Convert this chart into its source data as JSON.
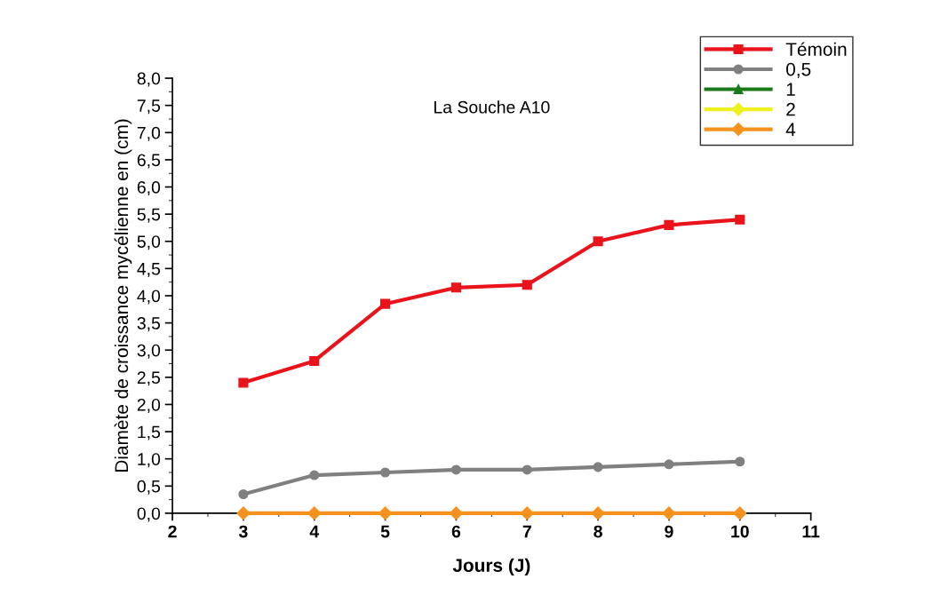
{
  "chart_data": {
    "type": "line",
    "title": "La Souche A10",
    "xlabel": "Jours (J)",
    "ylabel": "Diamète de croissance mycélienne en (cm)",
    "x": [
      3,
      4,
      5,
      6,
      7,
      8,
      9,
      10
    ],
    "series": [
      {
        "name": "Témoin",
        "color": "#e8131b",
        "marker": "square",
        "values": [
          2.4,
          2.8,
          3.85,
          4.15,
          4.2,
          5.0,
          5.3,
          5.4
        ]
      },
      {
        "name": "0,5",
        "color": "#808080",
        "marker": "circle",
        "values": [
          0.35,
          0.7,
          0.75,
          0.8,
          0.8,
          0.85,
          0.9,
          0.95
        ]
      },
      {
        "name": "1",
        "color": "#1a7a1a",
        "marker": "triangle",
        "values": [
          null,
          null,
          null,
          null,
          null,
          null,
          null,
          null
        ]
      },
      {
        "name": "2",
        "color": "#f0f020",
        "marker": "diamond",
        "values": [
          null,
          null,
          null,
          null,
          null,
          null,
          null,
          null
        ]
      },
      {
        "name": "4",
        "color": "#f5921e",
        "marker": "diamond",
        "values": [
          0,
          0,
          0,
          0,
          0,
          0,
          0,
          0
        ]
      }
    ],
    "xlim": [
      2,
      11
    ],
    "xticks": [
      2,
      3,
      4,
      5,
      6,
      7,
      8,
      9,
      10,
      11
    ],
    "ylim": [
      0,
      8
    ],
    "yticks": [
      {
        "value": 0,
        "label": "0,0"
      },
      {
        "value": 0.5,
        "label": "0,5"
      },
      {
        "value": 1,
        "label": "1,0"
      },
      {
        "value": 1.5,
        "label": "1,5"
      },
      {
        "value": 2,
        "label": "2,0"
      },
      {
        "value": 2.5,
        "label": "2,5"
      },
      {
        "value": 3,
        "label": "3,0"
      },
      {
        "value": 3.5,
        "label": "3,5"
      },
      {
        "value": 4,
        "label": "4,0"
      },
      {
        "value": 4.5,
        "label": "4,5"
      },
      {
        "value": 5,
        "label": "5,0"
      },
      {
        "value": 5.5,
        "label": "5,5"
      },
      {
        "value": 6,
        "label": "6,0"
      },
      {
        "value": 6.5,
        "label": "6,5"
      },
      {
        "value": 7,
        "label": "7,0"
      },
      {
        "value": 7.5,
        "label": "7,5"
      },
      {
        "value": 8,
        "label": "8,0"
      }
    ],
    "grid": false,
    "legend": "top right",
    "line_style": "solid"
  }
}
